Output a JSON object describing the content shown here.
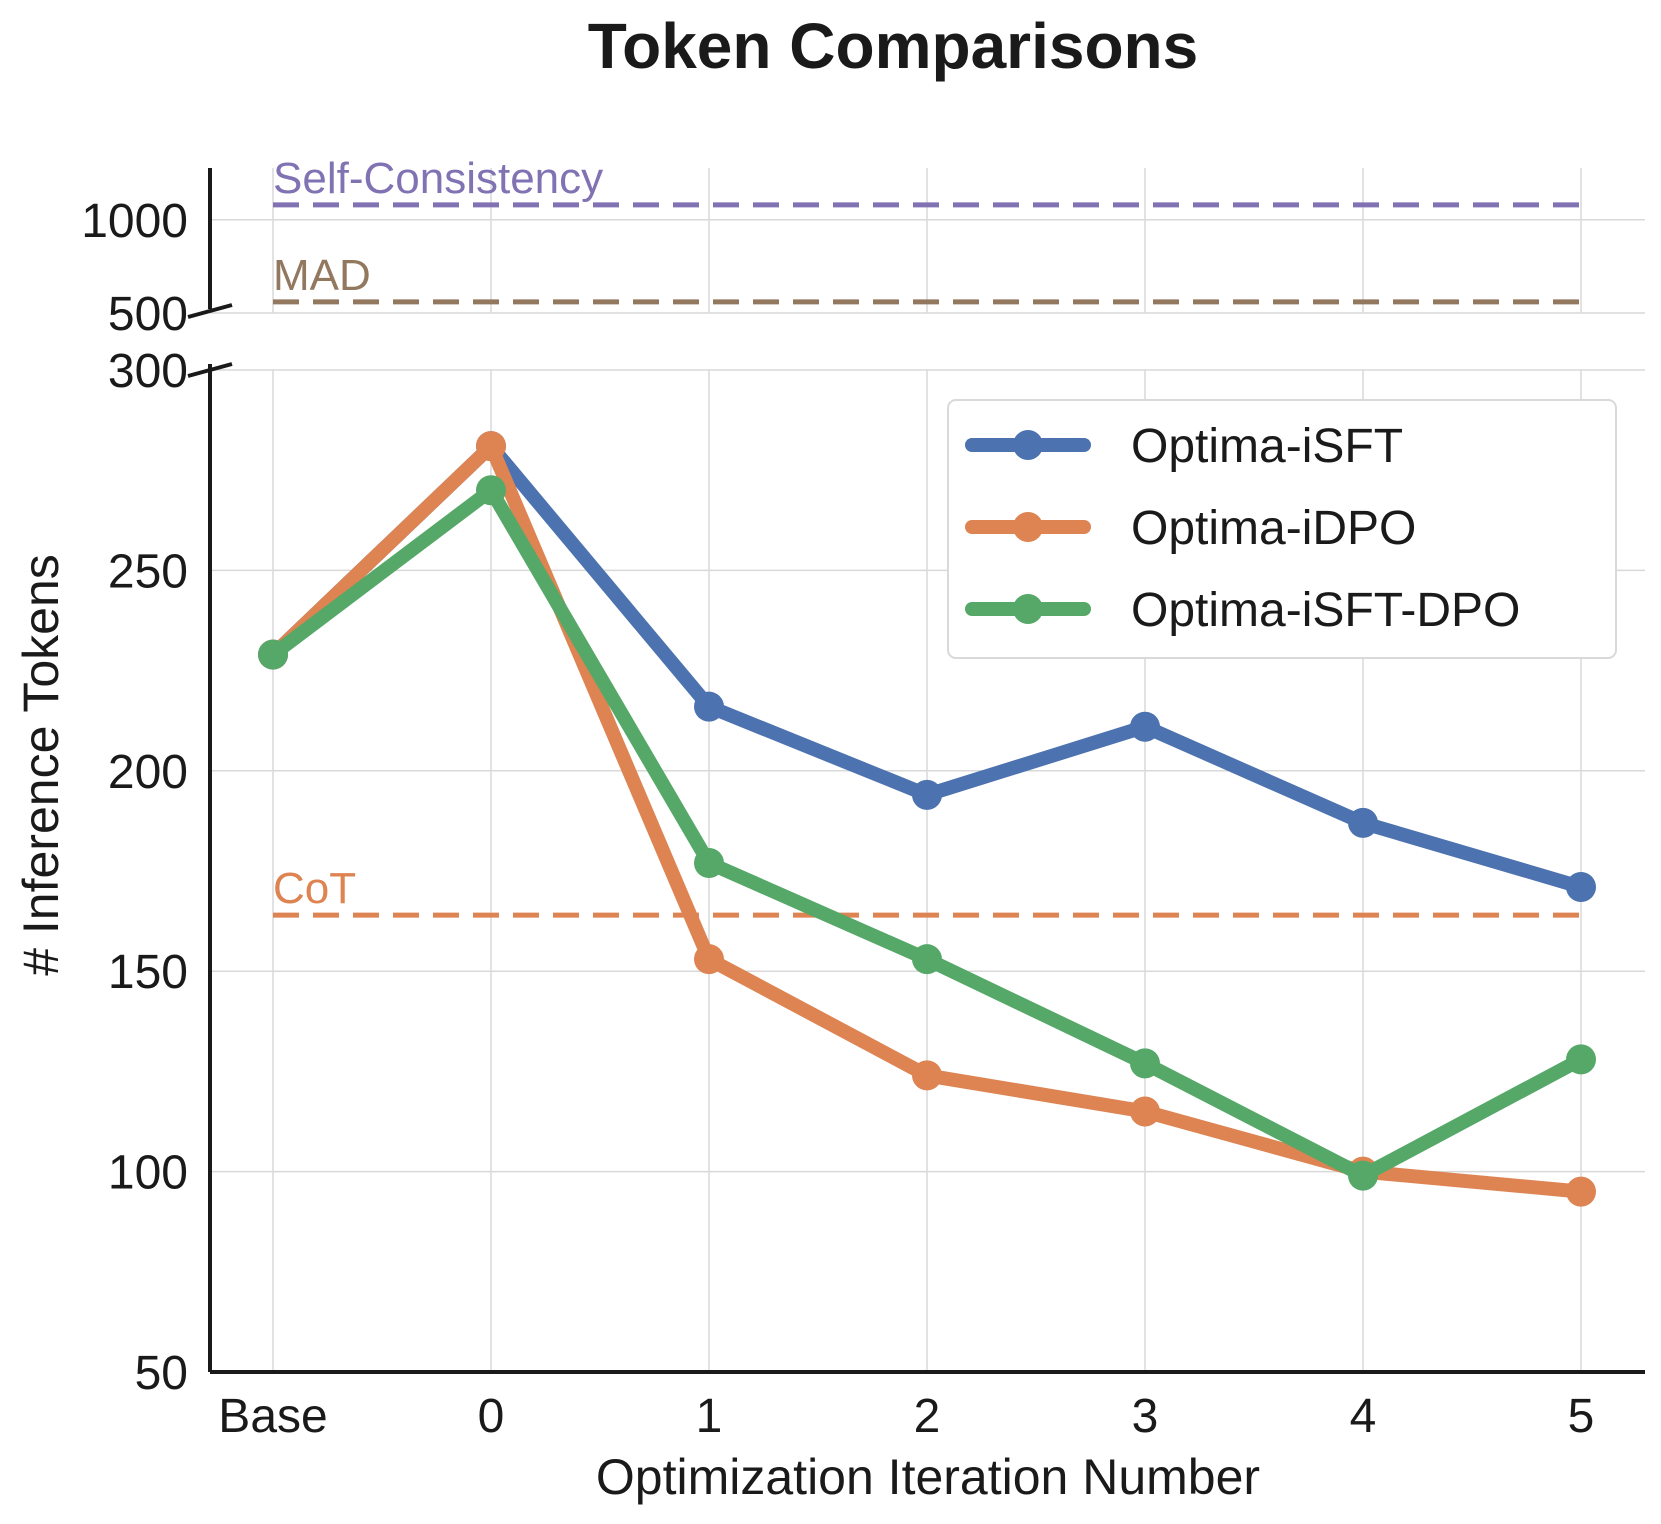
{
  "chart_data": {
    "type": "line",
    "title": "Token Comparisons",
    "xlabel": "Optimization Iteration Number",
    "ylabel": "# Inference Tokens",
    "categories": [
      "Base",
      "0",
      "1",
      "2",
      "3",
      "4",
      "5"
    ],
    "y_lower_ticks": [
      "50",
      "100",
      "150",
      "200",
      "250",
      "300"
    ],
    "y_upper_ticks": [
      "500",
      "1000"
    ],
    "y_lower_range": [
      50,
      300
    ],
    "y_upper_range": [
      500,
      1200
    ],
    "grid": true,
    "legend_position": "top-right",
    "series": [
      {
        "name": "Optima-iSFT",
        "color": "#4c72b0",
        "values": [
          229,
          281,
          216,
          194,
          211,
          187,
          171
        ]
      },
      {
        "name": "Optima-iDPO",
        "color": "#dd8452",
        "values": [
          229,
          281,
          153,
          124,
          115,
          100,
          95
        ]
      },
      {
        "name": "Optima-iSFT-DPO",
        "color": "#55a868",
        "values": [
          229,
          270,
          177,
          153,
          127,
          99,
          128
        ]
      }
    ],
    "reference_lines": [
      {
        "label": "Self-Consistency",
        "value": 1080,
        "color": "#8172b3"
      },
      {
        "label": "MAD",
        "value": 560,
        "color": "#937860"
      },
      {
        "label": "CoT",
        "value": 164,
        "color": "#dd8452"
      }
    ]
  }
}
